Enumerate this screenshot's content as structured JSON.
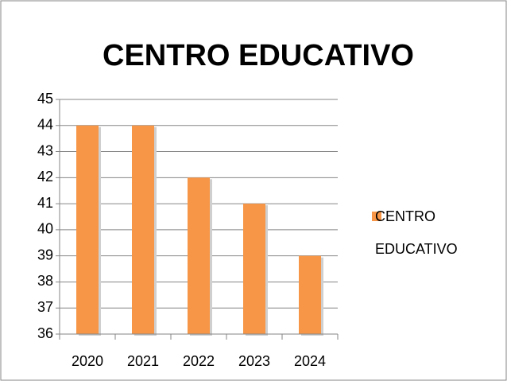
{
  "chart_data": {
    "type": "bar",
    "title": "CENTRO EDUCATIVO",
    "categories": [
      "2020",
      "2021",
      "2022",
      "2023",
      "2024"
    ],
    "series": [
      {
        "name": "CENTRO EDUCATIVO",
        "color": "#f79646",
        "values": [
          44,
          44,
          42,
          41,
          39
        ]
      }
    ],
    "ylim": [
      36,
      45
    ],
    "yticks": [
      36,
      37,
      38,
      39,
      40,
      41,
      42,
      43,
      44,
      45
    ],
    "grid": true,
    "legend": "right"
  }
}
